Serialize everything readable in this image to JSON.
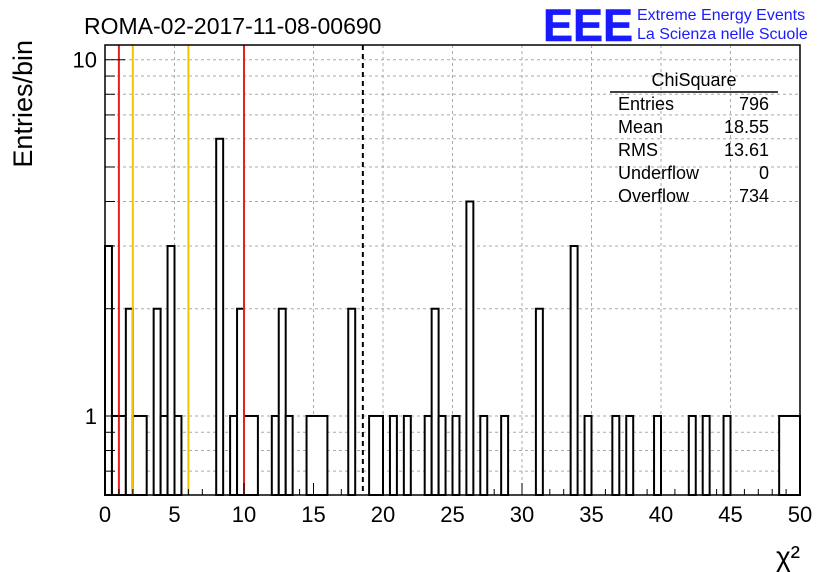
{
  "header": {
    "run_title": "ROMA-02-2017-11-08-00690",
    "logo_text": "EEE",
    "logo_line1": "Extreme Energy Events",
    "logo_line2": "La Scienza nelle Scuole",
    "logo_color": "#1a1aff"
  },
  "stats": {
    "title": "ChiSquare",
    "rows": [
      {
        "label": "Entries",
        "value": "796"
      },
      {
        "label": "Mean",
        "value": "18.55"
      },
      {
        "label": "RMS",
        "value": "13.61"
      },
      {
        "label": "Underflow",
        "value": "0"
      },
      {
        "label": "Overflow",
        "value": "734"
      }
    ]
  },
  "chart_data": {
    "type": "bar",
    "histogram": true,
    "title": "ROMA-02-2017-11-08-00690",
    "xlabel": "χ²",
    "ylabel": "Entries/bin",
    "xlim": [
      0,
      50
    ],
    "ylim": [
      0.6,
      11
    ],
    "log_y": true,
    "grid": true,
    "bin_width": 0.5,
    "x_ticks": [
      "0",
      "5",
      "10",
      "15",
      "20",
      "25",
      "30",
      "35",
      "40",
      "45",
      "50"
    ],
    "y_ticks": [
      "1",
      "10"
    ],
    "bins": [
      {
        "x0": 0.0,
        "x1": 0.5,
        "value": 3
      },
      {
        "x0": 0.5,
        "x1": 1.5,
        "value": 1
      },
      {
        "x0": 1.5,
        "x1": 2.0,
        "value": 2
      },
      {
        "x0": 2.0,
        "x1": 3.0,
        "value": 1
      },
      {
        "x0": 3.5,
        "x1": 4.0,
        "value": 2
      },
      {
        "x0": 4.0,
        "x1": 4.5,
        "value": 1
      },
      {
        "x0": 4.5,
        "x1": 5.0,
        "value": 3
      },
      {
        "x0": 5.0,
        "x1": 5.5,
        "value": 1
      },
      {
        "x0": 8.0,
        "x1": 8.5,
        "value": 6
      },
      {
        "x0": 9.0,
        "x1": 9.5,
        "value": 1
      },
      {
        "x0": 9.5,
        "x1": 10.0,
        "value": 2
      },
      {
        "x0": 10.0,
        "x1": 11.0,
        "value": 1
      },
      {
        "x0": 12.0,
        "x1": 12.5,
        "value": 1
      },
      {
        "x0": 12.5,
        "x1": 13.0,
        "value": 2
      },
      {
        "x0": 13.0,
        "x1": 13.5,
        "value": 1
      },
      {
        "x0": 14.5,
        "x1": 16.0,
        "value": 1
      },
      {
        "x0": 17.5,
        "x1": 18.0,
        "value": 2
      },
      {
        "x0": 19.0,
        "x1": 20.0,
        "value": 1
      },
      {
        "x0": 20.5,
        "x1": 21.0,
        "value": 1
      },
      {
        "x0": 21.5,
        "x1": 22.0,
        "value": 1
      },
      {
        "x0": 23.0,
        "x1": 23.5,
        "value": 1
      },
      {
        "x0": 23.5,
        "x1": 24.0,
        "value": 2
      },
      {
        "x0": 24.0,
        "x1": 24.5,
        "value": 1
      },
      {
        "x0": 25.0,
        "x1": 25.5,
        "value": 1
      },
      {
        "x0": 26.0,
        "x1": 26.5,
        "value": 4
      },
      {
        "x0": 27.0,
        "x1": 27.5,
        "value": 1
      },
      {
        "x0": 28.5,
        "x1": 29.0,
        "value": 1
      },
      {
        "x0": 31.0,
        "x1": 31.5,
        "value": 2
      },
      {
        "x0": 33.5,
        "x1": 34.0,
        "value": 3
      },
      {
        "x0": 34.5,
        "x1": 35.0,
        "value": 1
      },
      {
        "x0": 36.5,
        "x1": 37.0,
        "value": 1
      },
      {
        "x0": 37.5,
        "x1": 38.0,
        "value": 1
      },
      {
        "x0": 39.5,
        "x1": 40.0,
        "value": 1
      },
      {
        "x0": 42.0,
        "x1": 42.5,
        "value": 1
      },
      {
        "x0": 43.0,
        "x1": 43.5,
        "value": 1
      },
      {
        "x0": 44.5,
        "x1": 45.0,
        "value": 1
      },
      {
        "x0": 48.5,
        "x1": 50.0,
        "value": 1
      }
    ],
    "markers": [
      {
        "x": 1.0,
        "color": "#e32222"
      },
      {
        "x": 2.0,
        "color": "#f5c400"
      },
      {
        "x": 6.0,
        "color": "#f5c400"
      },
      {
        "x": 10.0,
        "color": "#e32222"
      },
      {
        "x": 18.55,
        "color": "#000000",
        "dashed": true
      }
    ]
  }
}
